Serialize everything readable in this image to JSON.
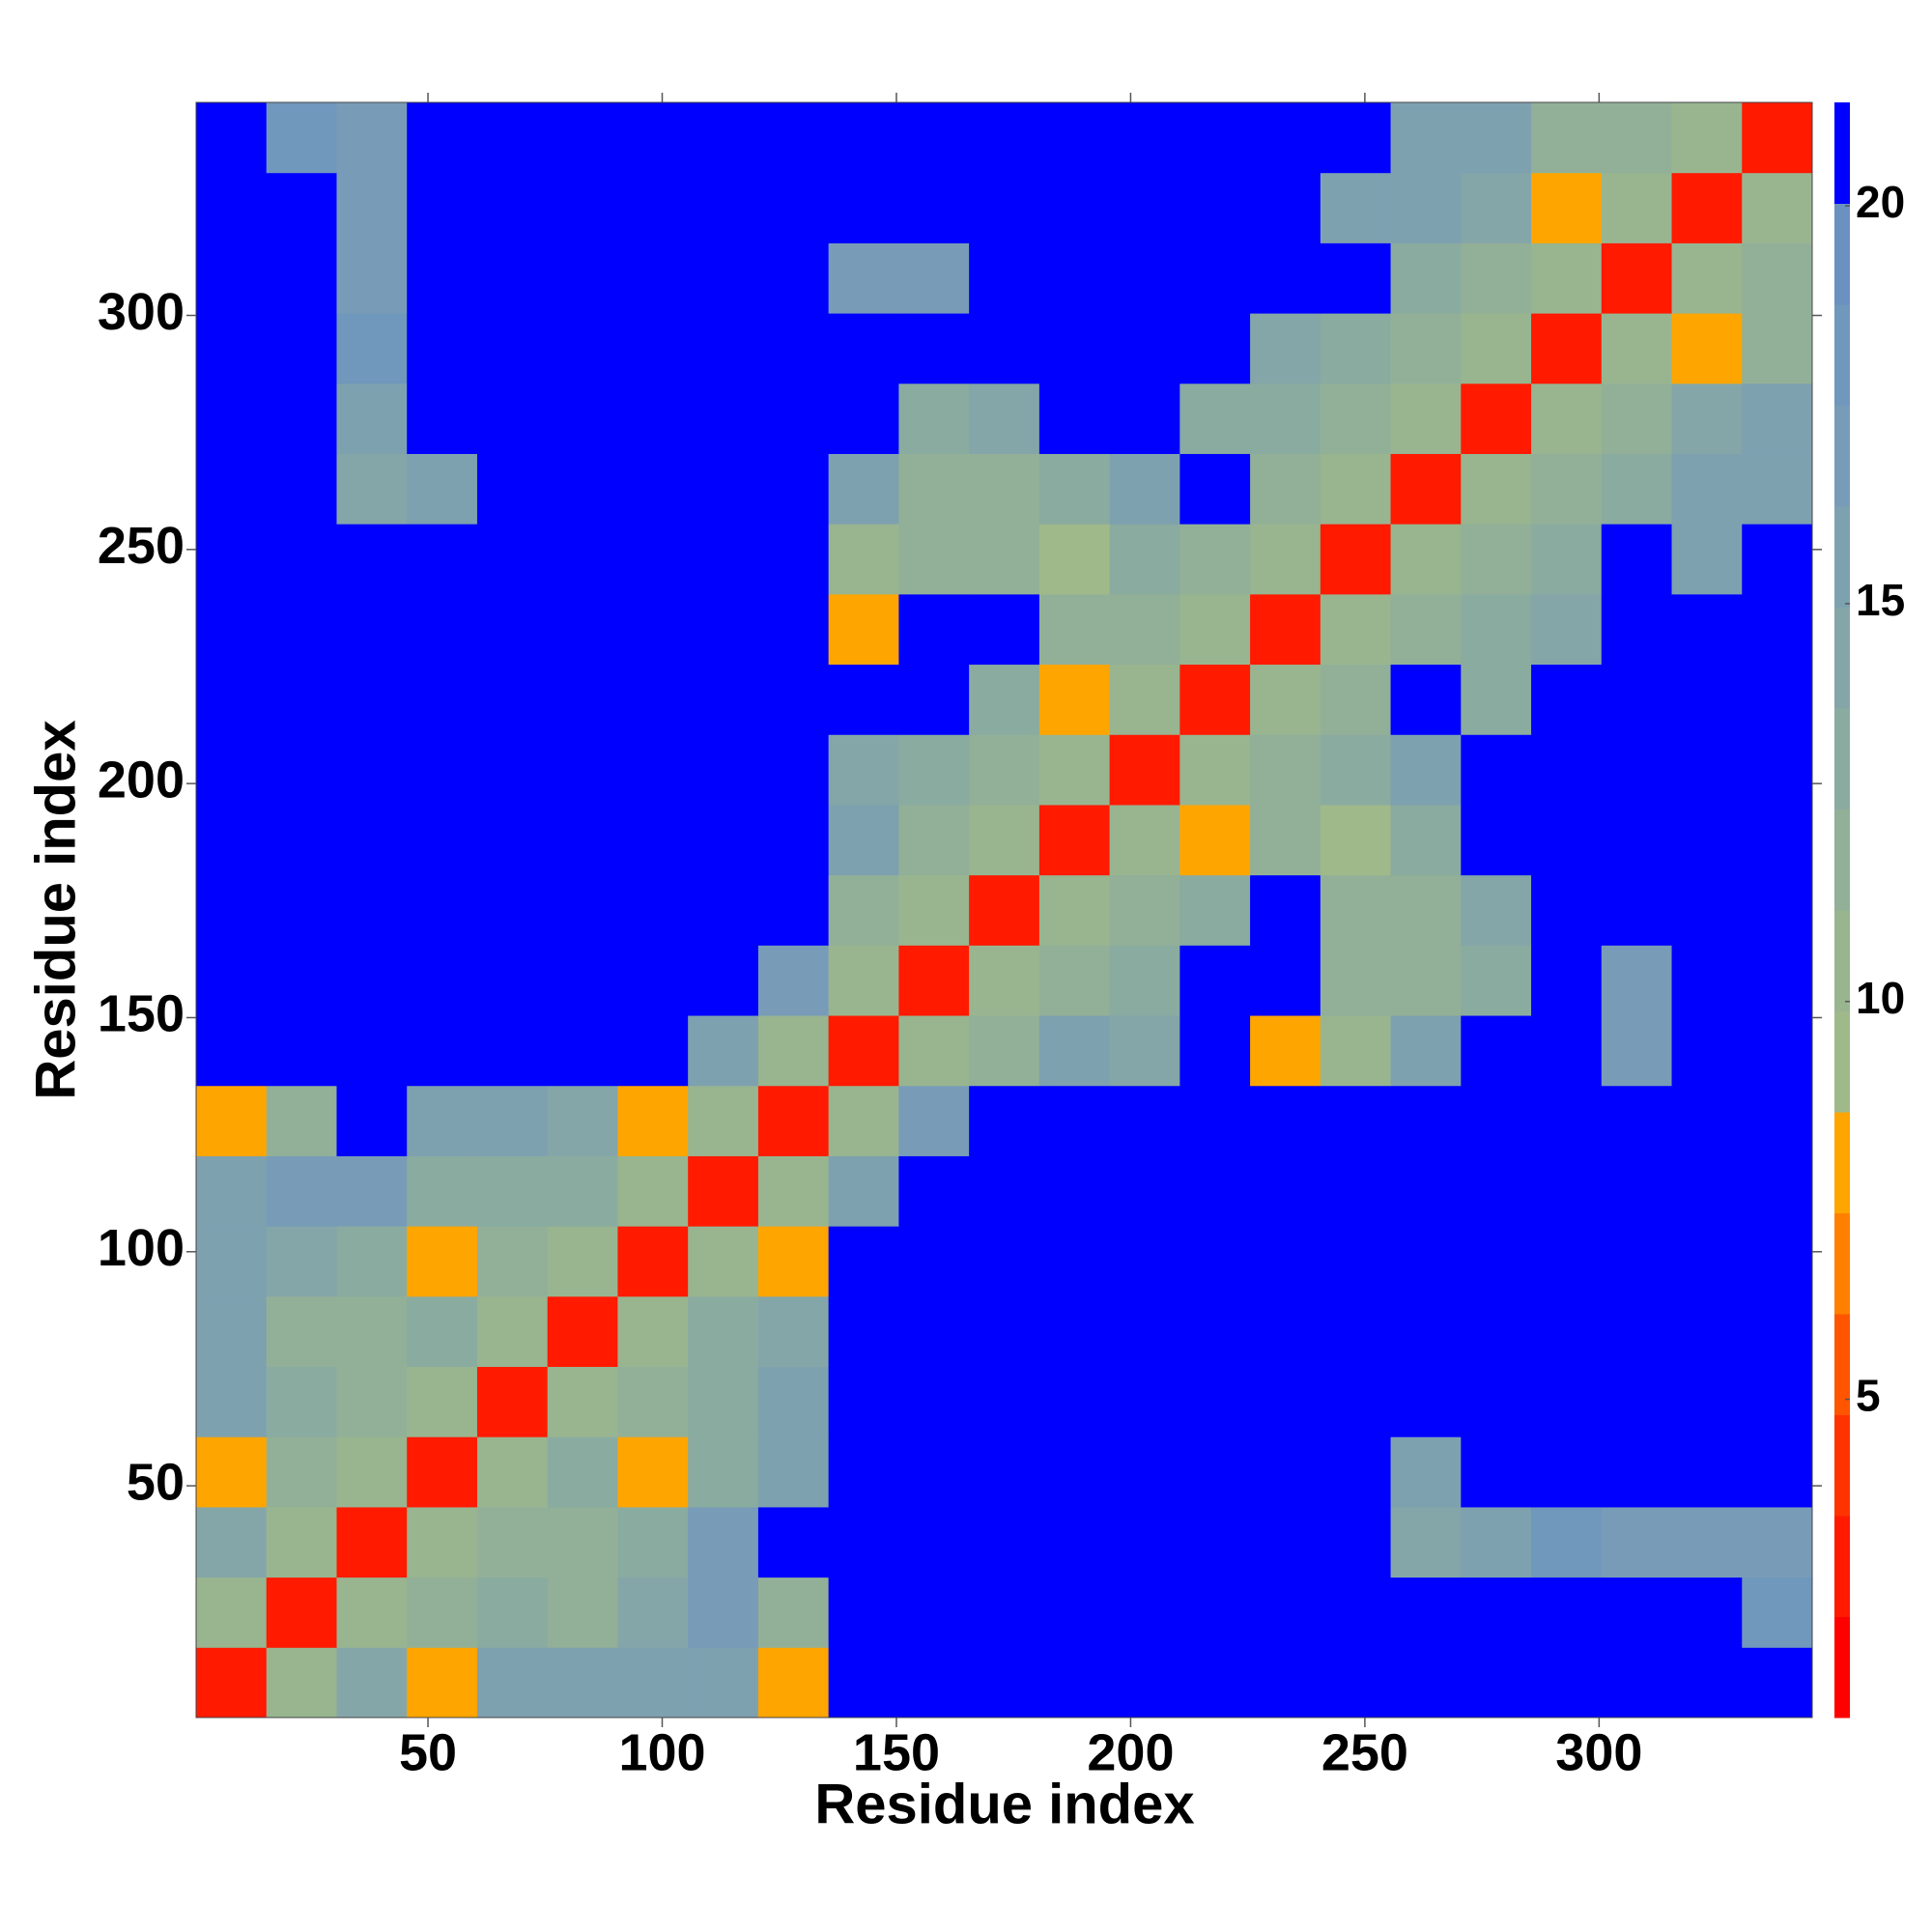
{
  "chart_data": {
    "type": "heatmap",
    "xlabel": "Residue index",
    "ylabel": "Residue index",
    "x_edges": [
      0.5,
      15.5,
      30.5,
      45.5,
      60.5,
      75.5,
      90.5,
      105.5,
      120.5,
      135.5,
      150.5,
      165.5,
      180.5,
      195.5,
      210.5,
      225.5,
      240.5,
      255.5,
      270.5,
      285.5,
      300.5,
      315.5,
      330.5,
      345.5
    ],
    "y_edges": [
      0.5,
      15.5,
      30.5,
      45.5,
      60.5,
      75.5,
      90.5,
      105.5,
      120.5,
      135.5,
      150.5,
      165.5,
      180.5,
      195.5,
      210.5,
      225.5,
      240.5,
      255.5,
      270.5,
      285.5,
      300.5,
      315.5,
      330.5,
      345.5
    ],
    "xlim": [
      0.5,
      345.5
    ],
    "ylim": [
      0.5,
      345.5
    ],
    "xticks": [
      50,
      100,
      150,
      200,
      250,
      300
    ],
    "yticks": [
      50,
      100,
      150,
      200,
      250,
      300
    ],
    "zlim": [
      1,
      21.3
    ],
    "zticks": [
      5,
      10,
      15,
      20
    ],
    "colormap": [
      "#ff0000",
      "#ff1a00",
      "#ff3300",
      "#ff5500",
      "#ff8000",
      "#ffa500",
      "#9fb98a",
      "#98b590",
      "#92b098",
      "#8aaba0",
      "#84a6a8",
      "#7ea1b0",
      "#789cb8",
      "#7097bc",
      "#6a91c0",
      "#0000ff"
    ],
    "z": [
      [
        3,
        10,
        14,
        8,
        15,
        15,
        15,
        16,
        8,
        21,
        21,
        21,
        21,
        21,
        21,
        21,
        21,
        21,
        21,
        21,
        21,
        21,
        21
      ],
      [
        10,
        3,
        10,
        12,
        13,
        12,
        14,
        17,
        12,
        21,
        21,
        21,
        21,
        21,
        21,
        21,
        21,
        21,
        21,
        21,
        21,
        21,
        18
      ],
      [
        14,
        10,
        3,
        10,
        12,
        12,
        13,
        17,
        21,
        21,
        21,
        21,
        21,
        21,
        21,
        21,
        21,
        14,
        15,
        18,
        17,
        17,
        17
      ],
      [
        8,
        12,
        10,
        3,
        10,
        13,
        8,
        13,
        16,
        21,
        21,
        21,
        21,
        21,
        21,
        21,
        21,
        16,
        21,
        21,
        21,
        21,
        21
      ],
      [
        15,
        13,
        12,
        10,
        3,
        10,
        12,
        13,
        15,
        21,
        21,
        21,
        21,
        21,
        21,
        21,
        21,
        21,
        21,
        21,
        21,
        21,
        21
      ],
      [
        15,
        12,
        12,
        13,
        10,
        3,
        10,
        13,
        14,
        21,
        21,
        21,
        21,
        21,
        21,
        21,
        21,
        21,
        21,
        21,
        21,
        21,
        21
      ],
      [
        15,
        14,
        13,
        8,
        12,
        10,
        3,
        10,
        8,
        21,
        21,
        21,
        21,
        21,
        21,
        21,
        21,
        21,
        21,
        21,
        21,
        21,
        21
      ],
      [
        16,
        17,
        17,
        13,
        13,
        13,
        10,
        3,
        10,
        16,
        21,
        21,
        21,
        21,
        21,
        21,
        21,
        21,
        21,
        21,
        21,
        21,
        21
      ],
      [
        8,
        12,
        21,
        16,
        15,
        14,
        8,
        10,
        3,
        10,
        17,
        21,
        21,
        21,
        21,
        21,
        21,
        21,
        21,
        21,
        21,
        21,
        21
      ],
      [
        21,
        21,
        21,
        21,
        21,
        21,
        21,
        16,
        10,
        3,
        10,
        12,
        15,
        14,
        21,
        8,
        10,
        15,
        21,
        21,
        17,
        21,
        21
      ],
      [
        21,
        21,
        21,
        21,
        21,
        21,
        21,
        21,
        17,
        10,
        3,
        10,
        12,
        13,
        21,
        21,
        12,
        12,
        13,
        21,
        17,
        21,
        21
      ],
      [
        21,
        21,
        21,
        21,
        21,
        21,
        21,
        21,
        21,
        12,
        10,
        3,
        10,
        12,
        13,
        21,
        12,
        12,
        14,
        21,
        21,
        21,
        21
      ],
      [
        21,
        21,
        21,
        21,
        21,
        21,
        21,
        21,
        21,
        15,
        12,
        10,
        3,
        10,
        8,
        12,
        9,
        13,
        21,
        21,
        21,
        21,
        21
      ],
      [
        21,
        21,
        21,
        21,
        21,
        21,
        21,
        21,
        21,
        14,
        13,
        12,
        10,
        3,
        10,
        12,
        13,
        15,
        21,
        21,
        21,
        21,
        21
      ],
      [
        21,
        21,
        21,
        21,
        21,
        21,
        21,
        21,
        21,
        21,
        21,
        13,
        8,
        10,
        3,
        10,
        12,
        21,
        13,
        21,
        21,
        21,
        21
      ],
      [
        21,
        21,
        21,
        21,
        21,
        21,
        21,
        21,
        21,
        8,
        21,
        21,
        12,
        12,
        10,
        3,
        10,
        12,
        13,
        14,
        21,
        21,
        21
      ],
      [
        21,
        21,
        21,
        21,
        21,
        21,
        21,
        21,
        21,
        10,
        12,
        12,
        9,
        13,
        12,
        10,
        3,
        10,
        12,
        13,
        21,
        15,
        21
      ],
      [
        21,
        21,
        14,
        16,
        21,
        21,
        21,
        21,
        21,
        15,
        12,
        12,
        13,
        15,
        21,
        12,
        10,
        3,
        10,
        12,
        13,
        15,
        16
      ],
      [
        21,
        21,
        15,
        21,
        21,
        21,
        21,
        21,
        21,
        21,
        13,
        14,
        21,
        21,
        13,
        13,
        12,
        10,
        3,
        10,
        12,
        14,
        16
      ],
      [
        21,
        21,
        18,
        21,
        21,
        21,
        21,
        21,
        21,
        21,
        21,
        21,
        21,
        21,
        21,
        14,
        13,
        12,
        10,
        3,
        10,
        8,
        12
      ],
      [
        21,
        21,
        17,
        21,
        21,
        21,
        21,
        21,
        21,
        17,
        17,
        21,
        21,
        21,
        21,
        21,
        21,
        13,
        12,
        10,
        3,
        10,
        12
      ],
      [
        21,
        21,
        17,
        21,
        21,
        21,
        21,
        21,
        21,
        21,
        21,
        21,
        21,
        21,
        21,
        21,
        15,
        15,
        14,
        8,
        10,
        3,
        10
      ],
      [
        21,
        18,
        17,
        21,
        21,
        21,
        21,
        21,
        21,
        21,
        21,
        21,
        21,
        21,
        21,
        21,
        21,
        16,
        16,
        12,
        12,
        10,
        3
      ]
    ]
  }
}
